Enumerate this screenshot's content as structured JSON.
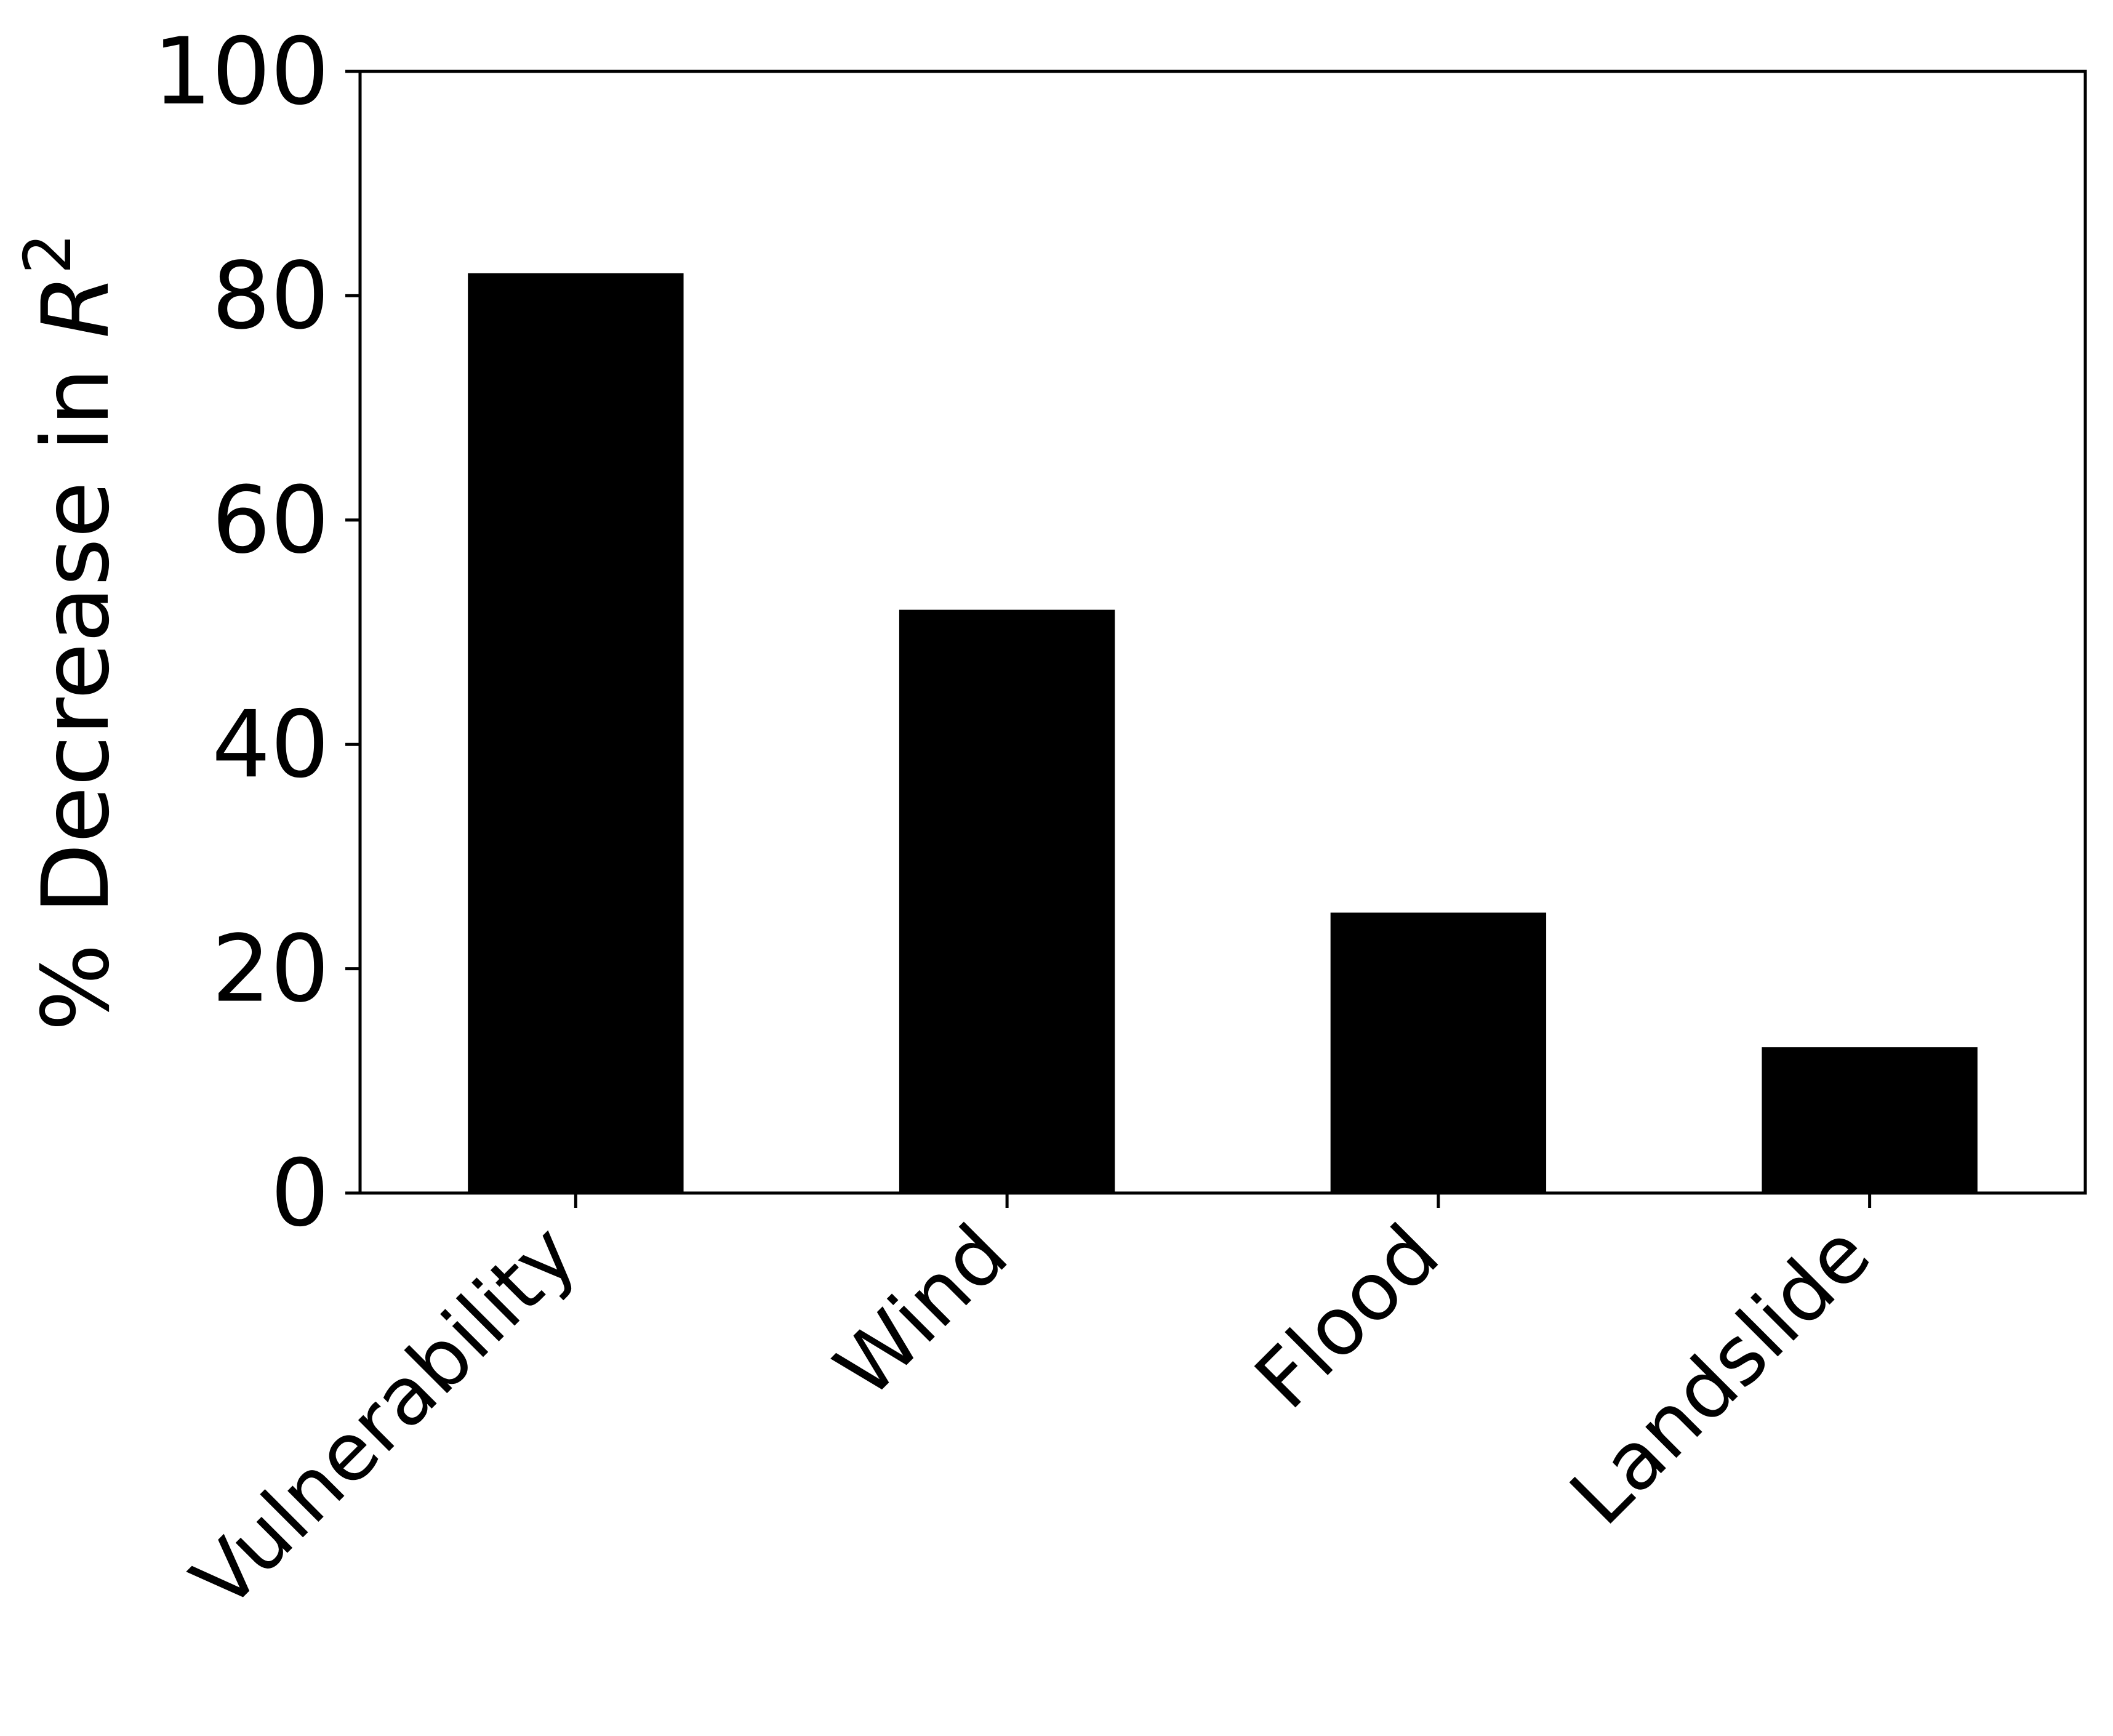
{
  "chart_data": {
    "type": "bar",
    "categories": [
      "Vulnerability",
      "Wind",
      "Flood",
      "Landslide"
    ],
    "values": [
      82,
      52,
      25,
      13
    ],
    "title": "",
    "xlabel": "",
    "ylabel": {
      "prefix": "% Decrease in ",
      "var": "R",
      "sup": "2"
    },
    "ylim": [
      0,
      100
    ],
    "yticks": [
      0,
      20,
      40,
      60,
      80,
      100
    ],
    "grid": false,
    "legend": "none",
    "bar_color": "#000000",
    "axis_color": "#000000"
  }
}
